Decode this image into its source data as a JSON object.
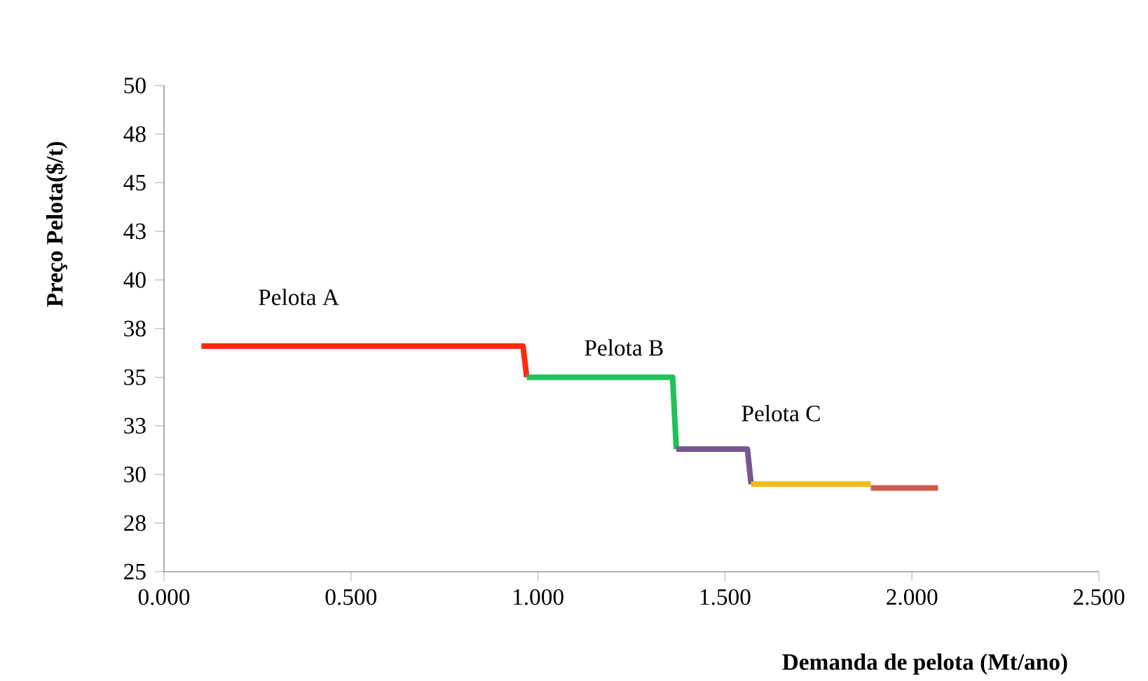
{
  "chart_data": {
    "type": "line",
    "xlabel": "Demanda de pelota (Mt/ano)",
    "ylabel": "Preço Pelota($/t)",
    "xlim": [
      0,
      2.5
    ],
    "ylim": [
      25,
      50
    ],
    "xticks": [
      {
        "value": 0,
        "label": "0.000"
      },
      {
        "value": 0.5,
        "label": "0.500"
      },
      {
        "value": 1,
        "label": "1.000"
      },
      {
        "value": 1.5,
        "label": "1.500"
      },
      {
        "value": 2,
        "label": "2.000"
      },
      {
        "value": 2.5,
        "label": "2.500"
      }
    ],
    "yticks": [
      25,
      {
        "value": 27.5,
        "label": "28"
      },
      30,
      {
        "value": 32.5,
        "label": "33"
      },
      35,
      {
        "value": 37.5,
        "label": "38"
      },
      40,
      {
        "value": 42.5,
        "label": "43"
      },
      45,
      {
        "value": 47.5,
        "label": "48"
      },
      50
    ],
    "marker": "none",
    "line_style": "solid",
    "series": [
      {
        "color": "#ff2a0c",
        "x": [
          0.1,
          0.96,
          0.97
        ],
        "values": [
          36.6,
          36.6,
          35.0
        ]
      },
      {
        "color": "#1fc15a",
        "x": [
          0.97,
          1.36,
          1.37
        ],
        "values": [
          35.0,
          35.0,
          31.3
        ]
      },
      {
        "color": "#75588f",
        "x": [
          1.37,
          1.56,
          1.57
        ],
        "values": [
          31.3,
          31.3,
          29.5
        ]
      },
      {
        "color": "#f0bc18",
        "x": [
          1.57,
          1.89
        ],
        "values": [
          29.5,
          29.5
        ]
      },
      {
        "color": "#cc5c50",
        "x": [
          1.89,
          2.07
        ],
        "values": [
          29.3,
          29.3
        ]
      }
    ],
    "annotations": [
      "Pelota A",
      "Pelota B",
      "Pelota C"
    ]
  }
}
